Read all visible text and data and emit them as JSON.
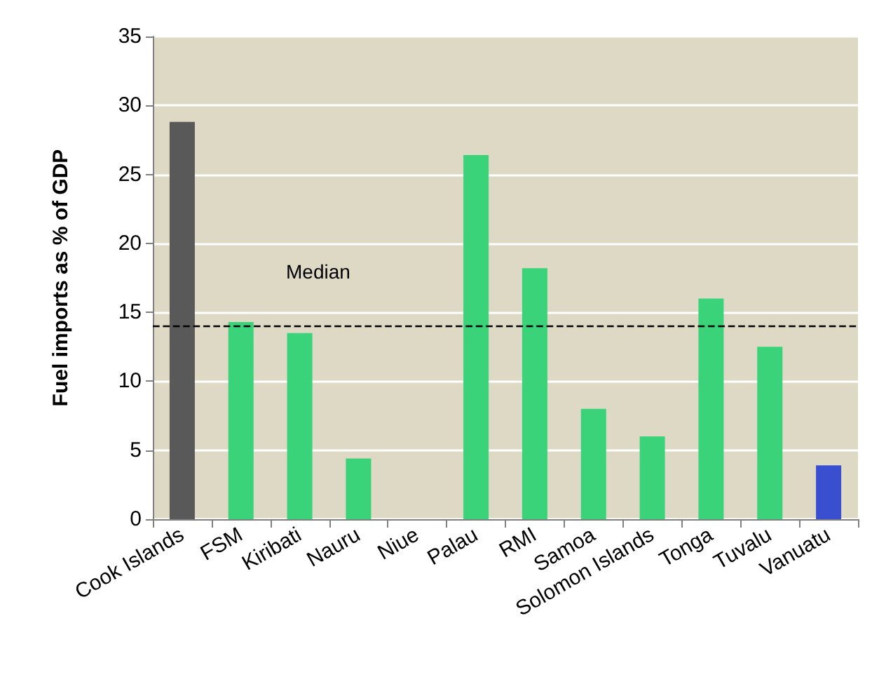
{
  "chart_data": {
    "type": "bar",
    "ylabel": "Fuel imports as % of GDP",
    "categories": [
      "Cook Islands",
      "FSM",
      "Kiribati",
      "Nauru",
      "Niue",
      "Palau",
      "RMI",
      "Samoa",
      "Solomon Islands",
      "Tonga",
      "Tuvalu",
      "Vanuatu"
    ],
    "values": [
      28.8,
      14.3,
      13.5,
      4.4,
      null,
      26.4,
      18.2,
      8.0,
      6.0,
      16.0,
      12.5,
      3.9
    ],
    "colors": [
      "#595959",
      "#3ad37a",
      "#3ad37a",
      "#3ad37a",
      "#3ad37a",
      "#3ad37a",
      "#3ad37a",
      "#3ad37a",
      "#3ad37a",
      "#3ad37a",
      "#3ad37a",
      "#3a4fd0"
    ],
    "ylim": [
      0,
      35
    ],
    "yticks": [
      0,
      5,
      10,
      15,
      20,
      25,
      30,
      35
    ],
    "grid": "y",
    "ref_lines": [
      {
        "axis": "y",
        "value": 14,
        "label": "Median",
        "color": "#000000",
        "line_style": "dashed"
      }
    ]
  }
}
